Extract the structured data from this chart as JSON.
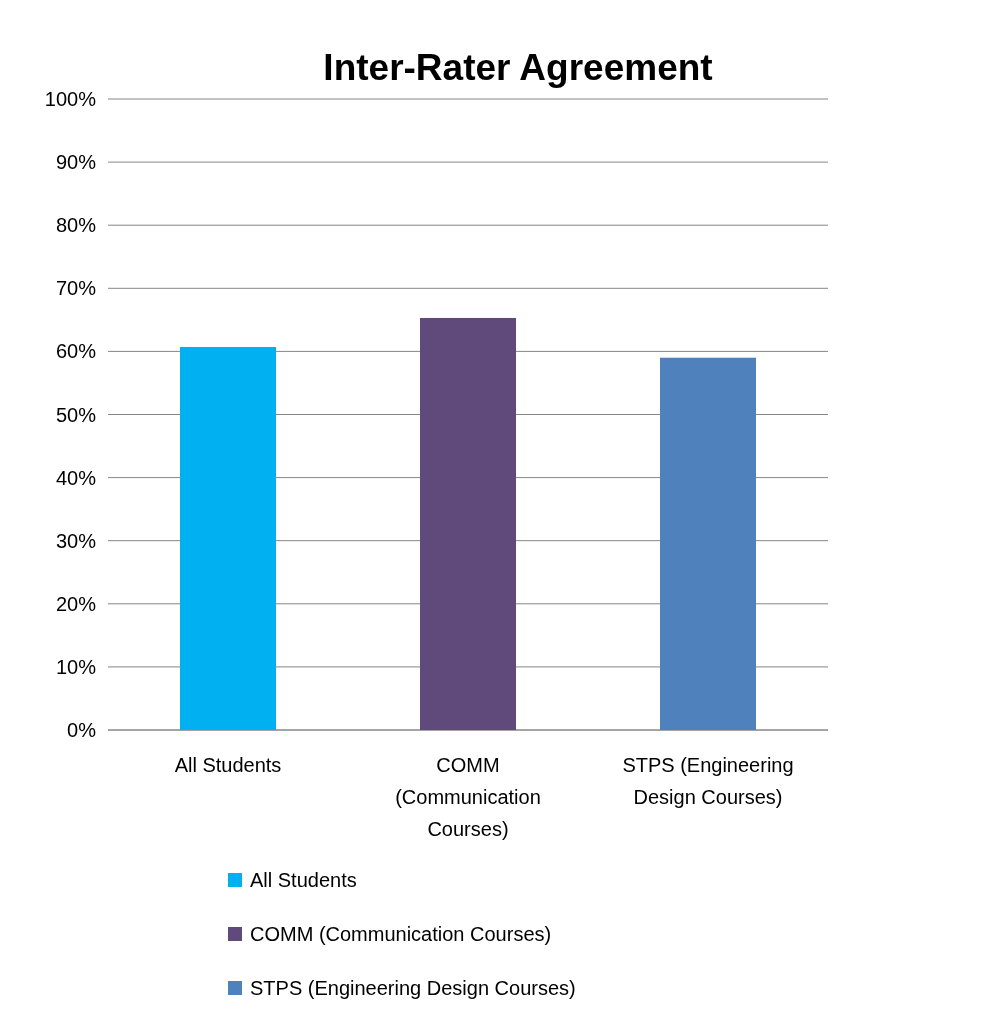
{
  "chart_data": {
    "type": "bar",
    "title": "Inter-Rater Agreement",
    "categories": [
      "All Students",
      "COMM (Communication Courses)",
      "STPS (Engineering Design Courses)"
    ],
    "series": [
      {
        "name": "All Students",
        "color": "#00b0f0",
        "values": [
          60.7,
          null,
          null
        ]
      },
      {
        "name": "COMM (Communication Courses)",
        "color": "#604a7b",
        "values": [
          null,
          65.3,
          null
        ]
      },
      {
        "name": "STPS (Engineering Design Courses)",
        "color": "#4f81bd",
        "values": [
          null,
          null,
          59.0
        ]
      }
    ],
    "ylim": [
      0,
      100
    ],
    "yticks": [
      {
        "value": 0,
        "label": "0%"
      },
      {
        "value": 10,
        "label": "10%"
      },
      {
        "value": 20,
        "label": "20%"
      },
      {
        "value": 30,
        "label": "30%"
      },
      {
        "value": 40,
        "label": "40%"
      },
      {
        "value": 50,
        "label": "50%"
      },
      {
        "value": 60,
        "label": "60%"
      },
      {
        "value": 70,
        "label": "70%"
      },
      {
        "value": 80,
        "label": "80%"
      },
      {
        "value": 90,
        "label": "90%"
      },
      {
        "value": 100,
        "label": "100%"
      }
    ],
    "grid": "y",
    "legend": "bottom"
  }
}
